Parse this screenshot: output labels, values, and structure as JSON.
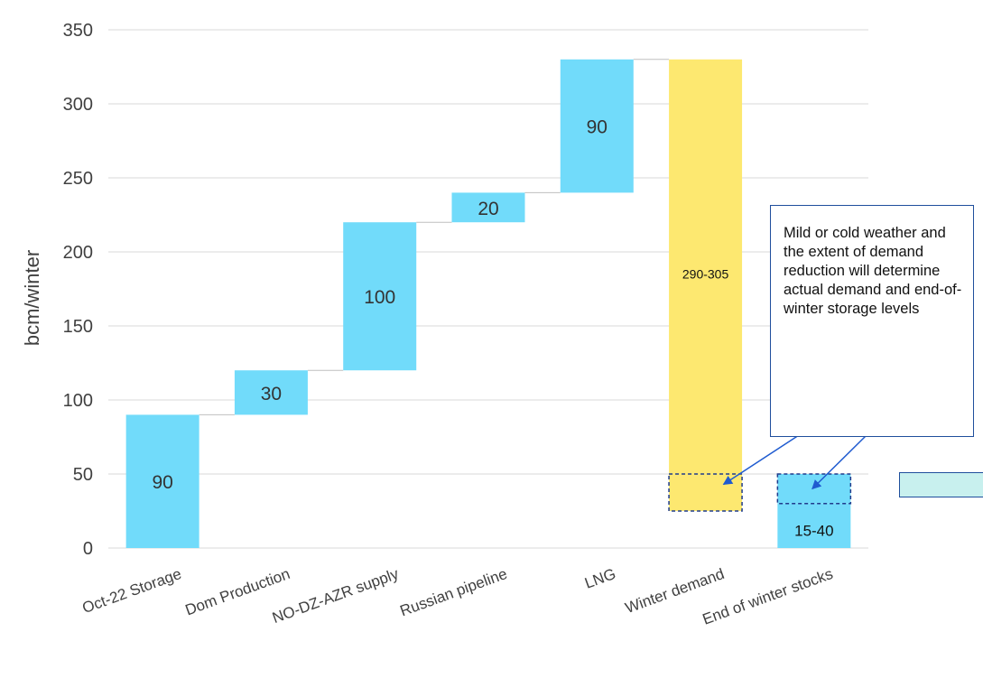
{
  "chart_data": {
    "type": "waterfall",
    "ylabel": "bcm/winter",
    "ylim": [
      0,
      350
    ],
    "yticks": [
      0,
      50,
      100,
      150,
      200,
      250,
      300,
      350
    ],
    "grid": true,
    "categories": [
      "Oct-22 Storage",
      "Dom Production",
      "NO-DZ-AZR supply",
      "Russian pipeline",
      "LNG",
      "Winter demand",
      "End of winter stocks"
    ],
    "bars": [
      {
        "category": "Oct-22 Storage",
        "base": 0,
        "top": 90,
        "label": "90",
        "color": "#71dbfa"
      },
      {
        "category": "Dom Production",
        "base": 90,
        "top": 120,
        "label": "30",
        "color": "#71dbfa"
      },
      {
        "category": "NO-DZ-AZR supply",
        "base": 120,
        "top": 220,
        "label": "100",
        "color": "#71dbfa"
      },
      {
        "category": "Russian pipeline",
        "base": 220,
        "top": 240,
        "label": "20",
        "color": "#71dbfa"
      },
      {
        "category": "LNG",
        "base": 240,
        "top": 330,
        "label": "90",
        "color": "#71dbfa"
      },
      {
        "category": "Winter demand",
        "base": 50,
        "top": 330,
        "label": "290-305",
        "color": "#fde870"
      },
      {
        "category": "End of winter stocks",
        "base": 0,
        "top": 30,
        "label": "15-40",
        "color": "#71dbfa"
      }
    ],
    "uncertainty_ranges": [
      {
        "category": "Winter demand",
        "low": 25,
        "high": 50,
        "color": "#fde870"
      },
      {
        "category": "End of winter stocks",
        "low": 30,
        "high": 50,
        "color": "#71dbfa"
      }
    ],
    "annotation": "Mild or cold weather and the extent of demand reduction will determine actual demand and end-of-winter storage levels"
  }
}
